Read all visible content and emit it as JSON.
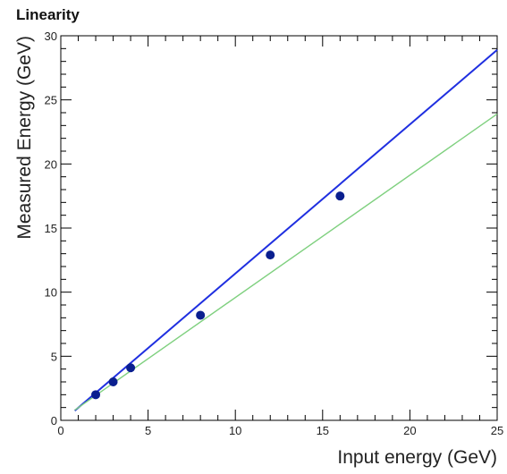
{
  "chart_data": {
    "type": "scatter",
    "title": "Linearity",
    "xlabel": "Input energy (GeV)",
    "ylabel": "Measured Energy (GeV)",
    "xlim": [
      0,
      25
    ],
    "ylim": [
      0,
      30
    ],
    "x_ticks": [
      0,
      5,
      10,
      15,
      20,
      25
    ],
    "y_ticks": [
      0,
      5,
      10,
      15,
      20,
      25,
      30
    ],
    "grid": false,
    "series": [
      {
        "kind": "points",
        "color": "#0a1f8f",
        "x": [
          2,
          3,
          4,
          8,
          12,
          16
        ],
        "y": [
          2.0,
          3.0,
          4.1,
          8.2,
          12.9,
          17.5
        ]
      },
      {
        "kind": "fit-line",
        "color": "#1f2fe0",
        "x": [
          0.8,
          25
        ],
        "y": [
          0.75,
          28.9
        ]
      },
      {
        "kind": "reference-line",
        "color": "#7fd07f",
        "x": [
          0.8,
          25
        ],
        "y": [
          0.8,
          23.9
        ]
      }
    ]
  }
}
